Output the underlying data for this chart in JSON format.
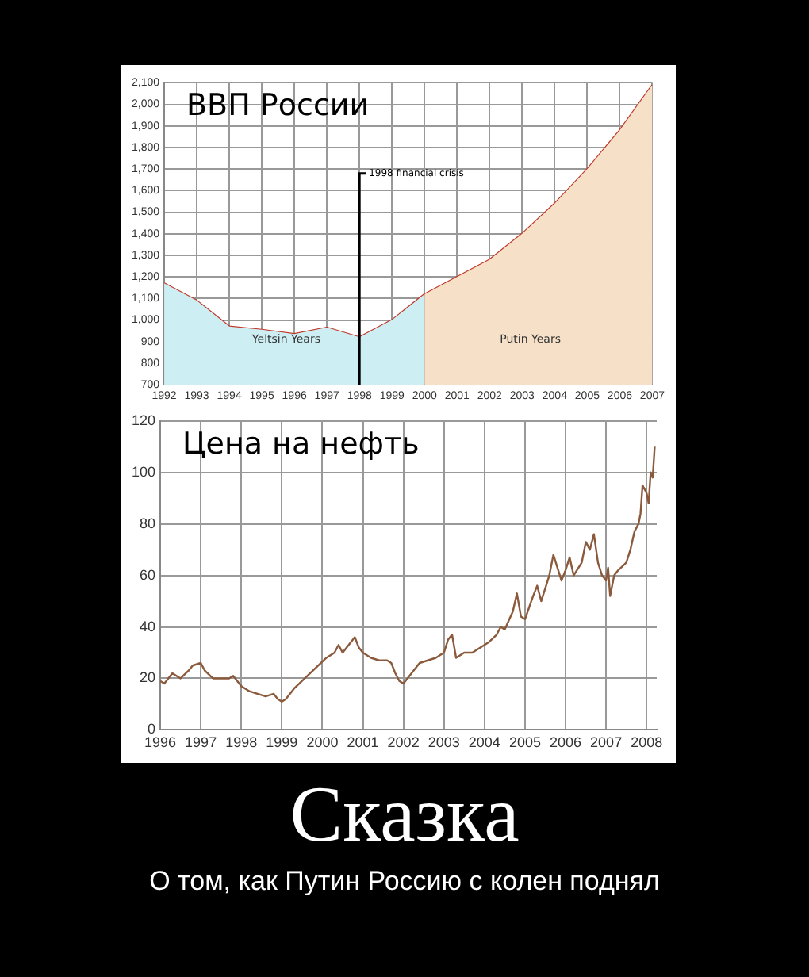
{
  "chart_data": [
    {
      "type": "line",
      "title": "ВВП России",
      "xlim": [
        1992,
        2007
      ],
      "xticks": [
        1992,
        1993,
        1994,
        1995,
        1996,
        1997,
        1998,
        1999,
        2000,
        2001,
        2002,
        2003,
        2004,
        2005,
        2006,
        2007
      ],
      "ylim": [
        700,
        2100
      ],
      "yticks": [
        700,
        800,
        900,
        {
          "value": 1000,
          "label": "1,000"
        },
        {
          "value": 1100,
          "label": "1,100"
        },
        {
          "value": 1200,
          "label": "1,200"
        },
        {
          "value": 1300,
          "label": "1,300"
        },
        {
          "value": 1400,
          "label": "1,400"
        },
        {
          "value": 1500,
          "label": "1,500"
        },
        {
          "value": 1600,
          "label": "1,600"
        },
        {
          "value": 1700,
          "label": "1,700"
        },
        {
          "value": 1800,
          "label": "1,800"
        },
        {
          "value": 1900,
          "label": "1,900"
        },
        {
          "value": 2000,
          "label": "2,000"
        },
        {
          "value": 2100,
          "label": "2,100"
        }
      ],
      "series": [
        {
          "type": "area",
          "color": "#cdeef2",
          "x": [
            1992,
            1993,
            1994,
            1995,
            1996,
            1997,
            1998,
            1999,
            2000
          ],
          "values": [
            1170,
            1090,
            970,
            955,
            935,
            965,
            920,
            1000,
            1120
          ]
        },
        {
          "type": "area",
          "color": "#f6e0c8",
          "x": [
            2000,
            2001,
            2002,
            2003,
            2004,
            2005,
            2006,
            2007
          ],
          "values": [
            1120,
            1200,
            1280,
            1400,
            1540,
            1700,
            1880,
            2090
          ]
        },
        {
          "type": "line",
          "color": "#c0392b",
          "x": [
            1992,
            1993,
            1994,
            1995,
            1996,
            1997,
            1998,
            1999,
            2000,
            2001,
            2002,
            2003,
            2004,
            2005,
            2006,
            2007
          ],
          "values": [
            1170,
            1090,
            970,
            955,
            935,
            965,
            920,
            1000,
            1120,
            1200,
            1280,
            1400,
            1540,
            1700,
            1880,
            2090
          ]
        }
      ],
      "ref_lines": [
        {
          "axis": "x",
          "value": 1998,
          "label": "1998 financial crisis",
          "color": "#000000"
        }
      ],
      "annotations": [
        "Yeltsin Years",
        "Putin Years"
      ],
      "grid": true,
      "legend": false,
      "marker": "none"
    },
    {
      "type": "line",
      "title": "Цена на нефть",
      "xlim": [
        1996,
        2008.25
      ],
      "xticks": [
        1996,
        1997,
        1998,
        1999,
        2000,
        2001,
        2002,
        2003,
        2004,
        2005,
        2006,
        2007,
        2008
      ],
      "ylim": [
        0,
        120
      ],
      "yticks": [
        0,
        20,
        40,
        60,
        80,
        100,
        120
      ],
      "series": [
        {
          "color": "#8b5a3c",
          "x": [
            1996.0,
            1996.1,
            1996.3,
            1996.4,
            1996.5,
            1996.7,
            1996.8,
            1997.0,
            1997.1,
            1997.3,
            1997.5,
            1997.7,
            1997.8,
            1998.0,
            1998.2,
            1998.4,
            1998.6,
            1998.8,
            1998.9,
            1999.0,
            1999.1,
            1999.3,
            1999.5,
            1999.7,
            1999.9,
            2000.1,
            2000.3,
            2000.4,
            2000.5,
            2000.7,
            2000.8,
            2000.9,
            2001.0,
            2001.2,
            2001.4,
            2001.6,
            2001.7,
            2001.8,
            2001.9,
            2002.0,
            2002.2,
            2002.4,
            2002.6,
            2002.8,
            2003.0,
            2003.1,
            2003.2,
            2003.3,
            2003.5,
            2003.7,
            2003.9,
            2004.1,
            2004.3,
            2004.4,
            2004.5,
            2004.7,
            2004.8,
            2004.9,
            2005.0,
            2005.2,
            2005.3,
            2005.4,
            2005.6,
            2005.7,
            2005.8,
            2005.9,
            2006.0,
            2006.1,
            2006.2,
            2006.4,
            2006.5,
            2006.6,
            2006.7,
            2006.8,
            2006.9,
            2007.0,
            2007.05,
            2007.1,
            2007.2,
            2007.3,
            2007.5,
            2007.6,
            2007.7,
            2007.8,
            2007.85,
            2007.9,
            2008.0,
            2008.05,
            2008.1,
            2008.15,
            2008.2
          ],
          "values": [
            19,
            18,
            22,
            21,
            20,
            23,
            25,
            26,
            23,
            20,
            20,
            20,
            21,
            17,
            15,
            14,
            13,
            14,
            12,
            11,
            12,
            16,
            19,
            22,
            25,
            28,
            30,
            33,
            30,
            34,
            36,
            32,
            30,
            28,
            27,
            27,
            26,
            22,
            19,
            18,
            22,
            26,
            27,
            28,
            30,
            35,
            37,
            28,
            30,
            30,
            32,
            34,
            37,
            40,
            39,
            46,
            53,
            44,
            43,
            52,
            56,
            50,
            60,
            68,
            63,
            58,
            62,
            67,
            60,
            65,
            73,
            70,
            76,
            65,
            60,
            58,
            63,
            52,
            60,
            62,
            65,
            70,
            77,
            80,
            84,
            95,
            92,
            88,
            100,
            98,
            110
          ]
        }
      ],
      "grid": true,
      "legend": false,
      "marker": "none"
    },
    {
      "type": "other",
      "title": "Сказка",
      "subtitle": "О том, как Путин Россию с колен поднял"
    }
  ]
}
